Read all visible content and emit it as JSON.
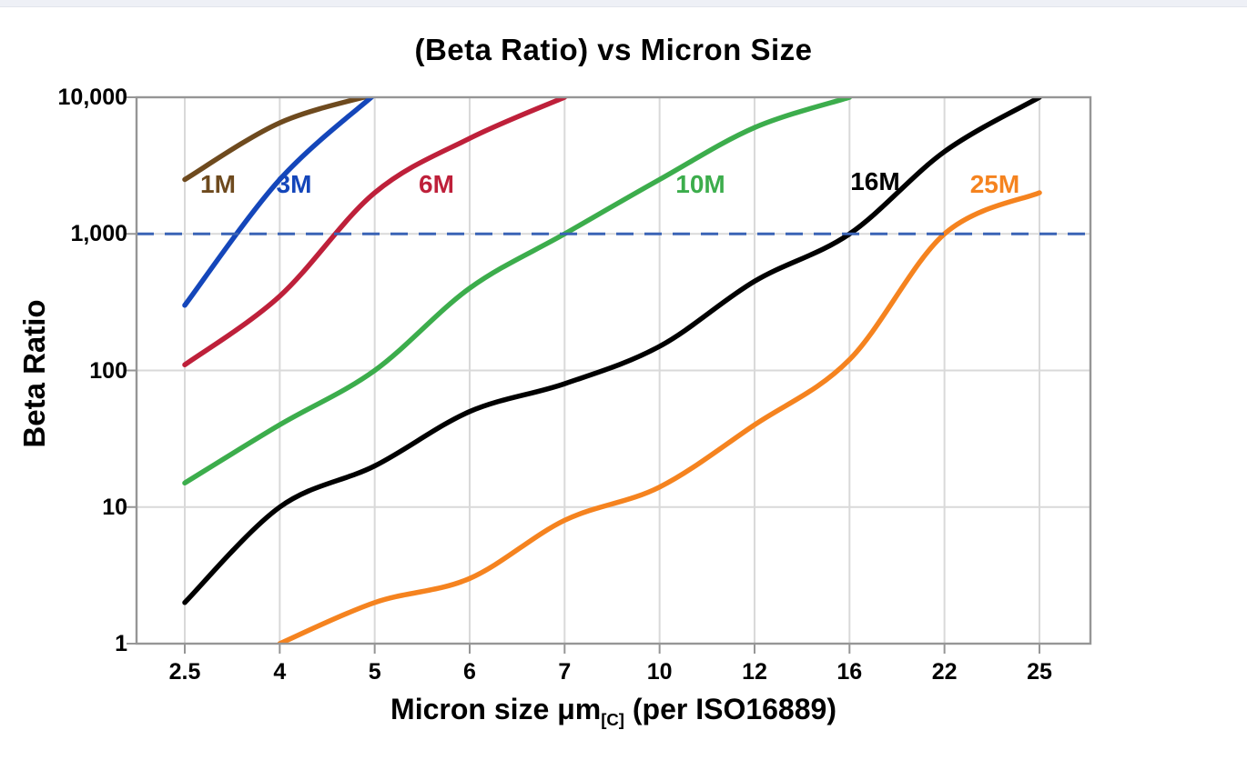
{
  "chart_data": {
    "type": "line",
    "title": "(Beta Ratio) vs Micron Size",
    "ylabel": "Beta Ratio",
    "xlabel": {
      "prefix": "Micron size μm",
      "subscript": "[C]",
      "suffix": " (per ISO16889)"
    },
    "x_tick_labels": [
      "2.5",
      "4",
      "5",
      "6",
      "7",
      "10",
      "12",
      "16",
      "22",
      "25"
    ],
    "x_categories": [
      2.5,
      4,
      5,
      6,
      7,
      10,
      12,
      16,
      22,
      25
    ],
    "x_axis_type": "ordinal-evenly-spaced",
    "y_scale": "log",
    "ylim": [
      1,
      10000
    ],
    "y_ticks": [
      1,
      10,
      100,
      1000,
      10000
    ],
    "y_tick_labels": [
      "1",
      "10",
      "100",
      "1,000",
      "10,000"
    ],
    "grid": true,
    "grid_color": "#d9d9d9",
    "axis_color": "#969696",
    "reference_line": {
      "value": 1000,
      "style": "dashed",
      "color": "#3a63b5"
    },
    "legend_position": "inline-curve-labels",
    "series": [
      {
        "name": "1M",
        "color": "#6e4a1e",
        "values": [
          2500,
          6500,
          10500,
          null,
          null,
          null,
          null,
          null,
          null,
          null
        ],
        "label_xi": 0.35,
        "label_value": 2300
      },
      {
        "name": "3M",
        "color": "#1446ba",
        "values": [
          300,
          2500,
          10500,
          null,
          null,
          null,
          null,
          null,
          null,
          null
        ],
        "label_xi": 1.15,
        "label_value": 2300
      },
      {
        "name": "6M",
        "color": "#be203a",
        "values": [
          110,
          350,
          2000,
          5000,
          10000,
          null,
          null,
          null,
          null,
          null
        ],
        "label_xi": 2.65,
        "label_value": 2300
      },
      {
        "name": "10M",
        "color": "#3cad4c",
        "values": [
          15,
          40,
          100,
          400,
          1000,
          2500,
          6000,
          10000,
          null,
          null
        ],
        "label_xi": 5.43,
        "label_value": 2300
      },
      {
        "name": "16M",
        "color": "#000000",
        "values": [
          2,
          10,
          20,
          50,
          80,
          150,
          450,
          1000,
          4000,
          10000
        ],
        "label_xi": 7.27,
        "label_value": 2400
      },
      {
        "name": "25M",
        "color": "#f5831f",
        "values": [
          null,
          1,
          2,
          3,
          8,
          14,
          40,
          120,
          1000,
          2000
        ],
        "label_xi": 8.53,
        "label_value": 2300
      }
    ]
  }
}
